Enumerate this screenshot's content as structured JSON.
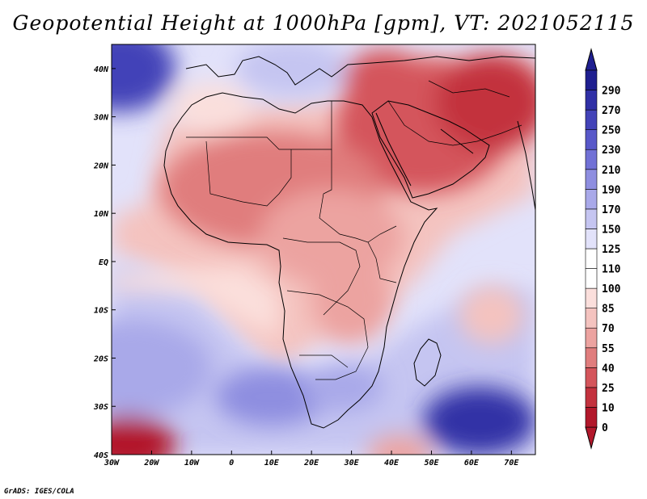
{
  "title": "Geopotential Height at 1000hPa [gpm], VT: 2021052115",
  "credit": "GrADS: IGES/COLA",
  "map": {
    "lon_range": [
      -30,
      76
    ],
    "lat_range": [
      -40,
      45
    ],
    "lon_ticks": [
      {
        "value": -30,
        "label": "30W"
      },
      {
        "value": -20,
        "label": "20W"
      },
      {
        "value": -10,
        "label": "10W"
      },
      {
        "value": 0,
        "label": "0"
      },
      {
        "value": 10,
        "label": "10E"
      },
      {
        "value": 20,
        "label": "20E"
      },
      {
        "value": 30,
        "label": "30E"
      },
      {
        "value": 40,
        "label": "40E"
      },
      {
        "value": 50,
        "label": "50E"
      },
      {
        "value": 60,
        "label": "60E"
      },
      {
        "value": 70,
        "label": "70E"
      }
    ],
    "lat_ticks": [
      {
        "value": 40,
        "label": "40N"
      },
      {
        "value": 30,
        "label": "30N"
      },
      {
        "value": 20,
        "label": "20N"
      },
      {
        "value": 10,
        "label": "10N"
      },
      {
        "value": 0,
        "label": "EQ"
      },
      {
        "value": -10,
        "label": "10S"
      },
      {
        "value": -20,
        "label": "20S"
      },
      {
        "value": -30,
        "label": "30S"
      },
      {
        "value": -40,
        "label": "40S"
      }
    ]
  },
  "colorbar": {
    "levels": [
      0,
      10,
      25,
      40,
      55,
      70,
      85,
      100,
      110,
      125,
      150,
      170,
      190,
      210,
      230,
      250,
      270,
      290
    ],
    "colors": [
      "#b2182b",
      "#c3323e",
      "#d4555b",
      "#e07d7d",
      "#eca3a0",
      "#f4c3bf",
      "#fbdfdc",
      "#ffffff",
      "#ffffff",
      "#e2e2fa",
      "#c5c5f1",
      "#a9a9e9",
      "#8e8ee0",
      "#7171d6",
      "#5858c9",
      "#4343b8",
      "#3030a6",
      "#1f1f90"
    ],
    "low_color": "#b2182b",
    "high_color": "#1f1f90"
  },
  "field_blobs": [
    {
      "lon": -28,
      "lat": 40,
      "value": 250,
      "rx": 14,
      "ry": 9
    },
    {
      "lon": 15,
      "lat": 40,
      "value": 160,
      "rx": 14,
      "ry": 6
    },
    {
      "lon": -5,
      "lat": 32,
      "value": 95,
      "rx": 10,
      "ry": 5
    },
    {
      "lon": 48,
      "lat": 28,
      "value": 25,
      "rx": 22,
      "ry": 14
    },
    {
      "lon": 65,
      "lat": 33,
      "value": 15,
      "rx": 14,
      "ry": 10
    },
    {
      "lon": 38,
      "lat": 38,
      "value": 30,
      "rx": 10,
      "ry": 6
    },
    {
      "lon": 10,
      "lat": 15,
      "value": 40,
      "rx": 28,
      "ry": 12
    },
    {
      "lon": 25,
      "lat": 5,
      "value": 55,
      "rx": 18,
      "ry": 10
    },
    {
      "lon": 30,
      "lat": -8,
      "value": 60,
      "rx": 10,
      "ry": 9
    },
    {
      "lon": 65,
      "lat": -11,
      "value": 75,
      "rx": 8,
      "ry": 6
    },
    {
      "lon": -25,
      "lat": -22,
      "value": 170,
      "rx": 20,
      "ry": 10
    },
    {
      "lon": 10,
      "lat": -28,
      "value": 200,
      "rx": 14,
      "ry": 6
    },
    {
      "lon": 28,
      "lat": -26,
      "value": 180,
      "rx": 10,
      "ry": 5
    },
    {
      "lon": 62,
      "lat": -33,
      "value": 280,
      "rx": 14,
      "ry": 7
    },
    {
      "lon": -26,
      "lat": -38,
      "value": 5,
      "rx": 12,
      "ry": 6
    },
    {
      "lon": 42,
      "lat": -40,
      "value": 60,
      "rx": 8,
      "ry": 4
    }
  ]
}
